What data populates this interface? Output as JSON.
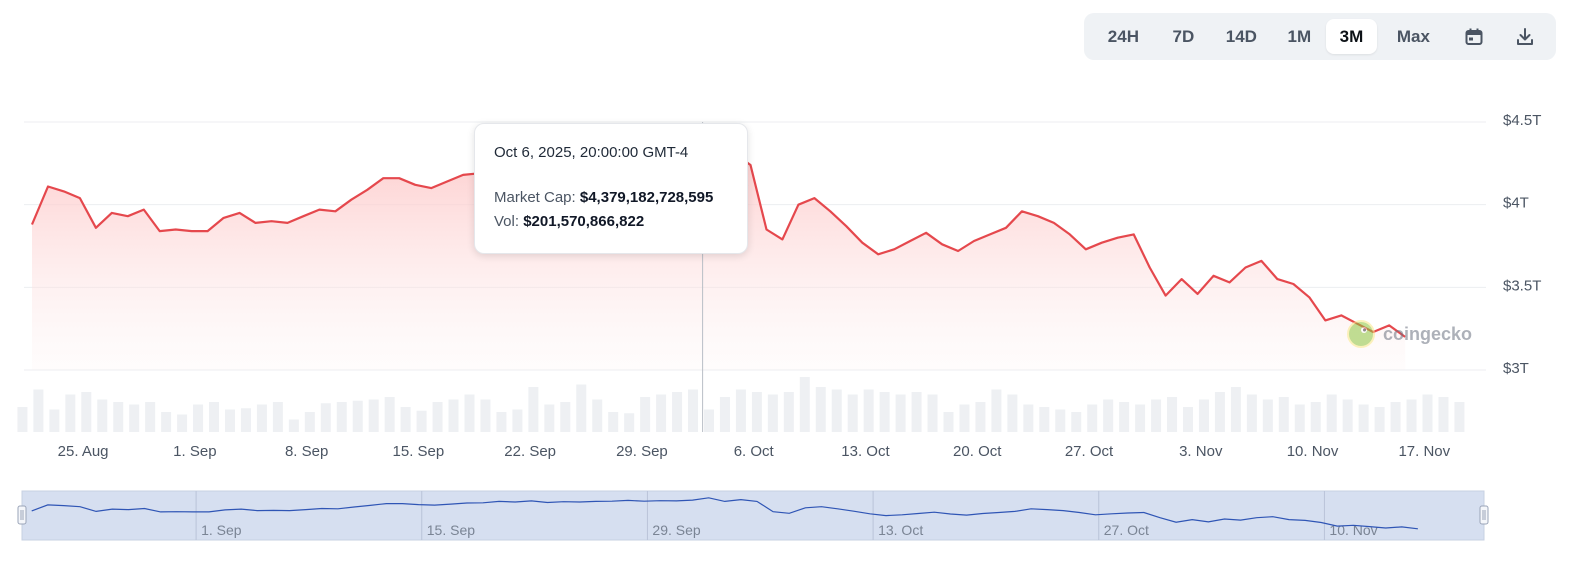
{
  "controls": {
    "ranges": [
      {
        "label": "24H",
        "active": false
      },
      {
        "label": "7D",
        "active": false
      },
      {
        "label": "14D",
        "active": false
      },
      {
        "label": "1M",
        "active": false
      },
      {
        "label": "3M",
        "active": true
      },
      {
        "label": "Max",
        "active": false
      }
    ],
    "icons": [
      "calendar-icon",
      "download-icon"
    ]
  },
  "tooltip": {
    "date": "Oct 6, 2025, 20:00:00 GMT-4",
    "market_cap_label": "Market Cap:",
    "market_cap_value": "$4,379,182,728,595",
    "vol_label": "Vol:",
    "vol_value": "$201,570,866,822"
  },
  "watermark": "coingecko",
  "colors": {
    "line": "#e5484d",
    "area_top": "#fdd5d5",
    "volume": "#eef0f3",
    "navigator_bg": "#d6dff0",
    "navigator_line": "#2f55b5"
  },
  "chart_data": {
    "type": "area",
    "title": "",
    "ylabel": "",
    "y_ticks": [
      "$4.5T",
      "$4T",
      "$3.5T",
      "$3T"
    ],
    "y_tick_values": [
      4.5,
      4.0,
      3.5,
      3.0
    ],
    "ylim": [
      3.0,
      4.5
    ],
    "y_unit": "trillion USD",
    "x_ticks": [
      "25. Aug",
      "1. Sep",
      "8. Sep",
      "15. Sep",
      "22. Sep",
      "29. Sep",
      "6. Oct",
      "13. Oct",
      "20. Oct",
      "27. Oct",
      "3. Nov",
      "10. Nov",
      "17. Nov"
    ],
    "x_range_days": [
      -3.2,
      87.3
    ],
    "x_note": "x = days since 25 Aug 2025",
    "series": [
      {
        "name": "Market Cap",
        "points": [
          [
            -3.2,
            3.88
          ],
          [
            -2.2,
            4.11
          ],
          [
            -1.2,
            4.08
          ],
          [
            -0.2,
            4.04
          ],
          [
            0.8,
            3.86
          ],
          [
            1.8,
            3.95
          ],
          [
            2.8,
            3.93
          ],
          [
            3.8,
            3.97
          ],
          [
            4.8,
            3.84
          ],
          [
            5.8,
            3.85
          ],
          [
            6.8,
            3.84
          ],
          [
            7.8,
            3.84
          ],
          [
            8.8,
            3.92
          ],
          [
            9.8,
            3.95
          ],
          [
            10.8,
            3.89
          ],
          [
            11.8,
            3.9
          ],
          [
            12.8,
            3.89
          ],
          [
            13.8,
            3.93
          ],
          [
            14.8,
            3.97
          ],
          [
            15.8,
            3.96
          ],
          [
            16.8,
            4.03
          ],
          [
            17.8,
            4.09
          ],
          [
            18.8,
            4.16
          ],
          [
            19.8,
            4.16
          ],
          [
            20.8,
            4.12
          ],
          [
            21.8,
            4.1
          ],
          [
            22.8,
            4.14
          ],
          [
            23.8,
            4.18
          ],
          [
            24.8,
            4.19
          ],
          [
            25.8,
            4.24
          ],
          [
            26.8,
            4.22
          ],
          [
            27.8,
            4.26
          ],
          [
            28.8,
            4.2
          ],
          [
            29.8,
            4.23
          ],
          [
            30.8,
            4.22
          ],
          [
            31.8,
            4.24
          ],
          [
            32.8,
            4.25
          ],
          [
            33.8,
            4.28
          ],
          [
            34.8,
            4.25
          ],
          [
            35.8,
            4.27
          ],
          [
            36.8,
            4.26
          ],
          [
            37.8,
            4.29
          ],
          [
            38.8,
            4.38
          ],
          [
            39.8,
            4.24
          ],
          [
            40.8,
            4.31
          ],
          [
            41.8,
            4.24
          ],
          [
            42.8,
            3.85
          ],
          [
            43.8,
            3.79
          ],
          [
            44.8,
            4.0
          ],
          [
            45.8,
            4.04
          ],
          [
            46.8,
            3.96
          ],
          [
            47.8,
            3.87
          ],
          [
            48.8,
            3.77
          ],
          [
            49.8,
            3.7
          ],
          [
            50.8,
            3.73
          ],
          [
            51.8,
            3.78
          ],
          [
            52.8,
            3.83
          ],
          [
            53.8,
            3.76
          ],
          [
            54.8,
            3.72
          ],
          [
            55.8,
            3.78
          ],
          [
            56.8,
            3.82
          ],
          [
            57.8,
            3.86
          ],
          [
            58.8,
            3.96
          ],
          [
            59.8,
            3.93
          ],
          [
            60.8,
            3.89
          ],
          [
            61.8,
            3.82
          ],
          [
            62.8,
            3.73
          ],
          [
            63.8,
            3.77
          ],
          [
            64.8,
            3.8
          ],
          [
            65.8,
            3.82
          ],
          [
            66.8,
            3.62
          ],
          [
            67.8,
            3.45
          ],
          [
            68.8,
            3.55
          ],
          [
            69.8,
            3.46
          ],
          [
            70.8,
            3.57
          ],
          [
            71.8,
            3.53
          ],
          [
            72.8,
            3.62
          ],
          [
            73.8,
            3.66
          ],
          [
            74.8,
            3.55
          ],
          [
            75.8,
            3.52
          ],
          [
            76.8,
            3.44
          ],
          [
            77.8,
            3.3
          ],
          [
            78.8,
            3.33
          ],
          [
            79.8,
            3.28
          ],
          [
            80.8,
            3.23
          ],
          [
            81.8,
            3.27
          ],
          [
            82.8,
            3.2
          ]
        ]
      },
      {
        "name": "Vol",
        "unit": "billion USD",
        "points": [
          [
            -3.8,
            100
          ],
          [
            -2.8,
            170
          ],
          [
            -1.8,
            90
          ],
          [
            -0.8,
            150
          ],
          [
            0.2,
            160
          ],
          [
            1.2,
            130
          ],
          [
            2.2,
            120
          ],
          [
            3.2,
            110
          ],
          [
            4.2,
            120
          ],
          [
            5.2,
            80
          ],
          [
            6.2,
            70
          ],
          [
            7.2,
            110
          ],
          [
            8.2,
            120
          ],
          [
            9.2,
            90
          ],
          [
            10.2,
            95
          ],
          [
            11.2,
            110
          ],
          [
            12.2,
            120
          ],
          [
            13.2,
            50
          ],
          [
            14.2,
            80
          ],
          [
            15.2,
            115
          ],
          [
            16.2,
            120
          ],
          [
            17.2,
            125
          ],
          [
            18.2,
            130
          ],
          [
            19.2,
            140
          ],
          [
            20.2,
            100
          ],
          [
            21.2,
            85
          ],
          [
            22.2,
            120
          ],
          [
            23.2,
            130
          ],
          [
            24.2,
            150
          ],
          [
            25.2,
            130
          ],
          [
            26.2,
            80
          ],
          [
            27.2,
            90
          ],
          [
            28.2,
            180
          ],
          [
            29.2,
            110
          ],
          [
            30.2,
            120
          ],
          [
            31.2,
            190
          ],
          [
            32.2,
            130
          ],
          [
            33.2,
            80
          ],
          [
            34.2,
            75
          ],
          [
            35.2,
            140
          ],
          [
            36.2,
            150
          ],
          [
            37.2,
            160
          ],
          [
            38.2,
            170
          ],
          [
            39.2,
            90
          ],
          [
            40.2,
            140
          ],
          [
            41.2,
            170
          ],
          [
            42.2,
            160
          ],
          [
            43.2,
            150
          ],
          [
            44.2,
            160
          ],
          [
            45.2,
            220
          ],
          [
            46.2,
            180
          ],
          [
            47.2,
            170
          ],
          [
            48.2,
            150
          ],
          [
            49.2,
            170
          ],
          [
            50.2,
            160
          ],
          [
            51.2,
            150
          ],
          [
            52.2,
            160
          ],
          [
            53.2,
            150
          ],
          [
            54.2,
            80
          ],
          [
            55.2,
            110
          ],
          [
            56.2,
            120
          ],
          [
            57.2,
            170
          ],
          [
            58.2,
            150
          ],
          [
            59.2,
            110
          ],
          [
            60.2,
            100
          ],
          [
            61.2,
            90
          ],
          [
            62.2,
            80
          ],
          [
            63.2,
            110
          ],
          [
            64.2,
            130
          ],
          [
            65.2,
            120
          ],
          [
            66.2,
            110
          ],
          [
            67.2,
            130
          ],
          [
            68.2,
            140
          ],
          [
            69.2,
            100
          ],
          [
            70.2,
            130
          ],
          [
            71.2,
            160
          ],
          [
            72.2,
            180
          ],
          [
            73.2,
            150
          ],
          [
            74.2,
            130
          ],
          [
            75.2,
            140
          ],
          [
            76.2,
            110
          ],
          [
            77.2,
            120
          ],
          [
            78.2,
            150
          ],
          [
            79.2,
            130
          ],
          [
            80.2,
            110
          ],
          [
            81.2,
            100
          ],
          [
            82.2,
            120
          ],
          [
            83.2,
            130
          ],
          [
            84.2,
            150
          ],
          [
            85.2,
            140
          ],
          [
            86.2,
            120
          ]
        ]
      }
    ],
    "volume_range_bn": [
      0,
      320
    ],
    "hover": {
      "x": 38.8,
      "y": 4.379
    },
    "grid": true,
    "legend": "none",
    "navigator": {
      "ticks": [
        "1. Sep",
        "15. Sep",
        "29. Sep",
        "13. Oct",
        "27. Oct",
        "10. Nov"
      ],
      "tick_days": [
        7,
        21,
        35,
        49,
        63,
        77
      ],
      "x_range_days": [
        -3.8,
        86.9
      ]
    }
  }
}
